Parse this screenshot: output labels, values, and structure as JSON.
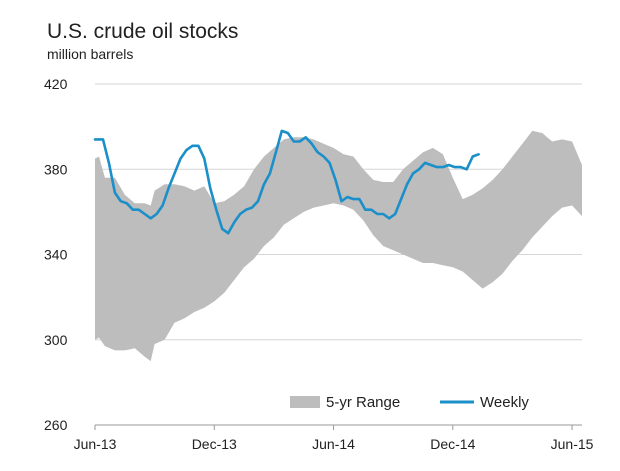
{
  "chart_data": {
    "type": "area",
    "title": "U.S. crude oil stocks",
    "subtitle": "million barrels",
    "ylim": [
      260,
      420
    ],
    "yticks": [
      260,
      300,
      340,
      380,
      420
    ],
    "xlim": [
      0,
      24.5
    ],
    "xticks": [
      {
        "x": 0,
        "label": "Jun-13"
      },
      {
        "x": 6,
        "label": "Dec-13"
      },
      {
        "x": 12,
        "label": "Jun-14"
      },
      {
        "x": 18,
        "label": "Dec-14"
      },
      {
        "x": 24,
        "label": "Jun-15"
      }
    ],
    "grid": true,
    "legend": "bottom-right",
    "colors": {
      "range": "#bdbdbd",
      "weekly": "#1b8fc9",
      "grid": "#d6d6d6"
    },
    "series": [
      {
        "name": "5-yr Range",
        "kind": "band",
        "x": [
          0,
          0.2,
          0.5,
          1,
          1.5,
          2,
          2.5,
          2.8,
          3,
          3.5,
          4,
          4.5,
          5,
          5.5,
          6,
          6.5,
          7,
          7.5,
          8,
          8.5,
          9,
          9.5,
          10,
          10.5,
          11,
          11.5,
          12,
          12.5,
          13,
          13.5,
          14,
          14.5,
          15,
          15.5,
          16,
          16.5,
          17,
          17.5,
          18,
          18.5,
          19,
          19.5,
          20,
          20.5,
          21,
          21.5,
          22,
          22.5,
          23,
          23.5,
          24,
          24.5
        ],
        "low": [
          300,
          301,
          297,
          295,
          295,
          296,
          292,
          290,
          298,
          300,
          308,
          310,
          313,
          315,
          318,
          322,
          328,
          334,
          338,
          344,
          348,
          354,
          357,
          360,
          362,
          363,
          364,
          363,
          361,
          356,
          349,
          344,
          342,
          340,
          338,
          336,
          336,
          335,
          334,
          332,
          328,
          324,
          327,
          331,
          337,
          342,
          348,
          353,
          358,
          362,
          363,
          358
        ],
        "high": [
          385,
          386,
          376,
          376,
          368,
          364,
          364,
          363,
          370,
          373,
          373,
          372,
          370,
          372,
          364,
          365,
          368,
          372,
          380,
          386,
          390,
          394,
          395,
          395,
          394,
          392,
          390,
          387,
          386,
          380,
          375,
          374,
          374,
          380,
          384,
          388,
          390,
          387,
          376,
          366,
          368,
          371,
          375,
          380,
          386,
          392,
          398,
          397,
          393,
          394,
          393,
          382
        ]
      },
      {
        "name": "Weekly",
        "kind": "line",
        "x": [
          0,
          0.4,
          0.7,
          1,
          1.3,
          1.6,
          1.9,
          2.2,
          2.5,
          2.8,
          3.1,
          3.4,
          3.7,
          4,
          4.3,
          4.6,
          4.9,
          5.2,
          5.5,
          5.8,
          6.1,
          6.4,
          6.7,
          7,
          7.3,
          7.6,
          7.9,
          8.2,
          8.5,
          8.8,
          9.1,
          9.4,
          9.7,
          10,
          10.3,
          10.6,
          10.9,
          11.2,
          11.5,
          11.8,
          12.1,
          12.4,
          12.7,
          13,
          13.3,
          13.6,
          13.9,
          14.2,
          14.5,
          14.8,
          15.1,
          15.4,
          15.7,
          16,
          16.3,
          16.6,
          16.9,
          17.2,
          17.5,
          17.8,
          18.1,
          18.4,
          18.7,
          19,
          19.3
        ],
        "values": [
          394,
          394,
          383,
          369,
          365,
          364,
          361,
          361,
          359,
          357,
          359,
          363,
          371,
          378,
          385,
          389,
          391,
          391,
          385,
          371,
          361,
          352,
          350,
          355,
          359,
          361,
          362,
          365,
          373,
          378,
          388,
          398,
          397,
          393,
          393,
          395,
          392,
          388,
          386,
          383,
          375,
          365,
          367,
          366,
          366,
          361,
          361,
          359,
          359,
          357,
          359,
          366,
          373,
          378,
          380,
          383,
          382,
          381,
          381,
          382,
          381,
          381,
          380,
          386,
          387
        ]
      }
    ]
  }
}
